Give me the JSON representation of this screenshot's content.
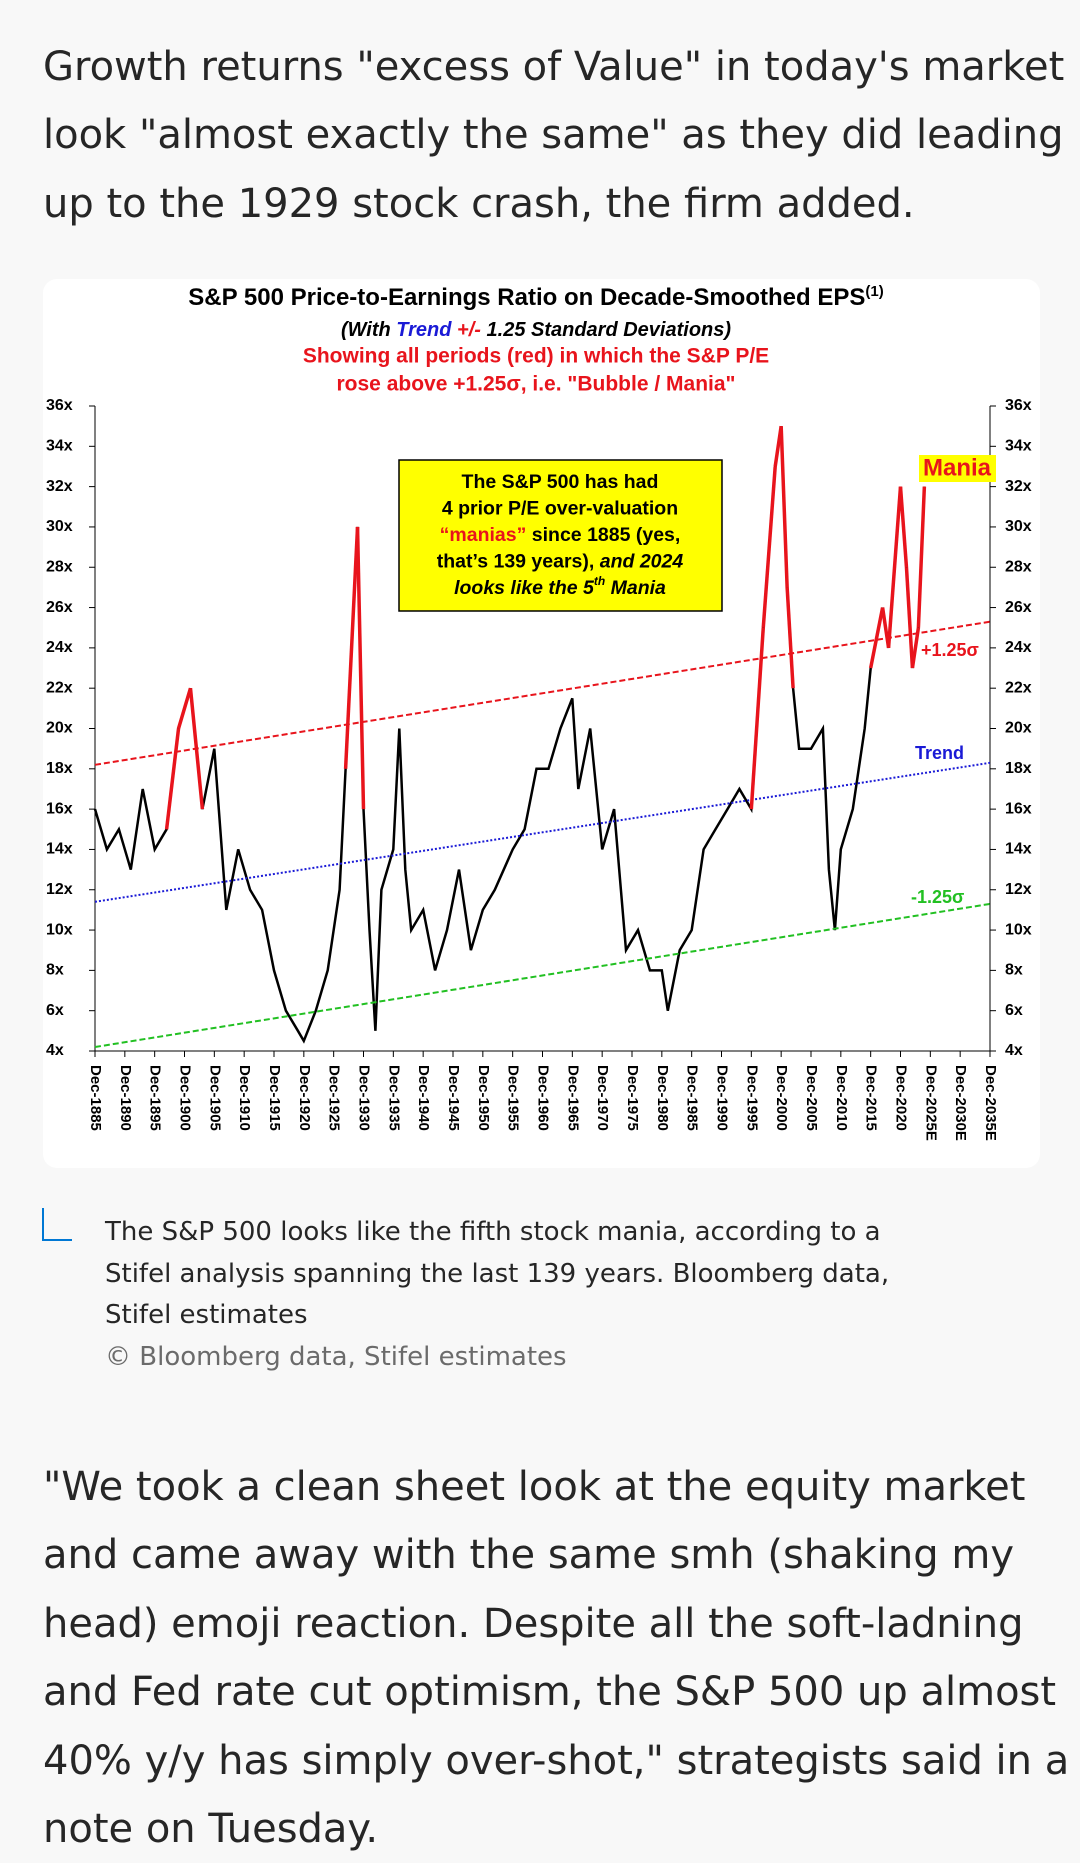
{
  "article": {
    "paragraphs": [
      {
        "lines": [
          "Growth returns \"excess of Value\" in today's market",
          "look \"almost exactly the same\" as they did leading",
          "up to the 1929 stock crash, the firm added."
        ]
      },
      {
        "lines": [
          "\"We took a clean sheet look at the equity market",
          "and came away with the same smh (shaking my",
          "head) emoji reaction. Despite all the soft-ladning",
          "and Fed rate cut optimism, the S&P 500 up almost",
          "40% y/y has simply over-shot,\" strategists said in a",
          "note on Tuesday."
        ]
      }
    ]
  },
  "figure": {
    "caption_lines": [
      "The S&P 500 looks like the fifth stock mania, according to a",
      "Stifel analysis spanning the last 139 years. Bloomberg data,",
      "Stifel estimates"
    ],
    "credit": "© Bloomberg data, Stifel estimates"
  },
  "chart_data": {
    "type": "line",
    "title": "S&P 500 Price-to-Earnings Ratio on Decade-Smoothed EPS",
    "title_note": "(1)",
    "subtitle": [
      "(With ",
      "Trend",
      " +/- ",
      "1.25 Standard Deviations)"
    ],
    "subtitle_colors": [
      "#000000",
      "#1a1ad6",
      "#e8141c",
      "#000000"
    ],
    "highlight_lines": [
      "Showing all periods (red) in which the S&P P/E",
      "rose above +1.25σ, i.e. \"Bubble / Mania\""
    ],
    "highlight_color": "#e8141c",
    "annotation_box": [
      [
        {
          "text": "The S&P 500 has had"
        }
      ],
      [
        {
          "text": "4 prior P/E over-valuation"
        }
      ],
      [
        {
          "text": "“manias”",
          "color": "#e8141c"
        },
        {
          "text": " since 1885 (yes,"
        }
      ],
      [
        {
          "text": "that’s 139 years), "
        },
        {
          "text": "and 2024",
          "italic": true
        }
      ],
      [
        {
          "text": "looks like the 5",
          "italic": true
        },
        {
          "text": "th",
          "italic": true,
          "sup": true
        },
        {
          "text": " Mania",
          "italic": true
        }
      ]
    ],
    "mania_label": "Mania",
    "xlim": [
      1885,
      2035
    ],
    "xticks": [
      {
        "value": 1885,
        "label": "Dec-1885"
      },
      {
        "value": 1890,
        "label": "Dec-1890"
      },
      {
        "value": 1895,
        "label": "Dec-1895"
      },
      {
        "value": 1900,
        "label": "Dec-1900"
      },
      {
        "value": 1905,
        "label": "Dec-1905"
      },
      {
        "value": 1910,
        "label": "Dec-1910"
      },
      {
        "value": 1915,
        "label": "Dec-1915"
      },
      {
        "value": 1920,
        "label": "Dec-1920"
      },
      {
        "value": 1925,
        "label": "Dec-1925"
      },
      {
        "value": 1930,
        "label": "Dec-1930"
      },
      {
        "value": 1935,
        "label": "Dec-1935"
      },
      {
        "value": 1940,
        "label": "Dec-1940"
      },
      {
        "value": 1945,
        "label": "Dec-1945"
      },
      {
        "value": 1950,
        "label": "Dec-1950"
      },
      {
        "value": 1955,
        "label": "Dec-1955"
      },
      {
        "value": 1960,
        "label": "Dec-1960"
      },
      {
        "value": 1965,
        "label": "Dec-1965"
      },
      {
        "value": 1970,
        "label": "Dec-1970"
      },
      {
        "value": 1975,
        "label": "Dec-1975"
      },
      {
        "value": 1980,
        "label": "Dec-1980"
      },
      {
        "value": 1985,
        "label": "Dec-1985"
      },
      {
        "value": 1990,
        "label": "Dec-1990"
      },
      {
        "value": 1995,
        "label": "Dec-1995"
      },
      {
        "value": 2000,
        "label": "Dec-2000"
      },
      {
        "value": 2005,
        "label": "Dec-2005"
      },
      {
        "value": 2010,
        "label": "Dec-2010"
      },
      {
        "value": 2015,
        "label": "Dec-2015"
      },
      {
        "value": 2020,
        "label": "Dec-2020"
      },
      {
        "value": 2025,
        "label": "Dec-2025E"
      },
      {
        "value": 2030,
        "label": "Dec-2030E"
      },
      {
        "value": 2035,
        "label": "Dec-2035E"
      }
    ],
    "ylim": [
      4,
      36
    ],
    "yticks": [
      {
        "value": 4,
        "label": "4x"
      },
      {
        "value": 6,
        "label": "6x"
      },
      {
        "value": 8,
        "label": "8x"
      },
      {
        "value": 10,
        "label": "10x"
      },
      {
        "value": 12,
        "label": "12x"
      },
      {
        "value": 14,
        "label": "14x"
      },
      {
        "value": 16,
        "label": "16x"
      },
      {
        "value": 18,
        "label": "18x"
      },
      {
        "value": 20,
        "label": "20x"
      },
      {
        "value": 22,
        "label": "22x"
      },
      {
        "value": 24,
        "label": "24x"
      },
      {
        "value": 26,
        "label": "26x"
      },
      {
        "value": 28,
        "label": "28x"
      },
      {
        "value": 30,
        "label": "30x"
      },
      {
        "value": 32,
        "label": "32x"
      },
      {
        "value": 34,
        "label": "34x"
      },
      {
        "value": 36,
        "label": "36x"
      }
    ],
    "mirror_y_axis": true,
    "series": [
      {
        "color": "#000000",
        "highlight_color": "#e8141c",
        "x": [
          1885,
          1887,
          1889,
          1891,
          1893,
          1895,
          1897,
          1899,
          1901,
          1903,
          1905,
          1907,
          1909,
          1911,
          1913,
          1915,
          1917,
          1919,
          1920,
          1922,
          1924,
          1926,
          1927,
          1929,
          1930,
          1931,
          1932,
          1933,
          1935,
          1936,
          1937,
          1938,
          1940,
          1942,
          1944,
          1946,
          1948,
          1950,
          1952,
          1955,
          1957,
          1959,
          1961,
          1963,
          1965,
          1966,
          1968,
          1970,
          1972,
          1974,
          1976,
          1978,
          1980,
          1981,
          1983,
          1985,
          1987,
          1989,
          1991,
          1993,
          1995,
          1997,
          1999,
          2000,
          2001,
          2002,
          2003,
          2005,
          2007,
          2008,
          2009,
          2010,
          2012,
          2014,
          2015,
          2017,
          2018,
          2020,
          2021,
          2022,
          2023,
          2024
        ],
        "values": [
          16,
          14,
          15,
          13,
          17,
          14,
          15,
          20,
          22,
          16,
          19,
          11,
          14,
          12,
          11,
          8,
          6,
          5,
          4.5,
          6,
          8,
          12,
          18,
          30,
          16,
          10,
          5,
          12,
          14,
          20,
          13,
          10,
          11,
          8,
          10,
          13,
          9,
          11,
          12,
          14,
          15,
          18,
          18,
          20,
          21.5,
          17,
          20,
          14,
          16,
          9,
          10,
          8,
          8,
          6,
          9,
          10,
          14,
          15,
          16,
          17,
          16,
          25,
          33,
          35,
          27,
          22,
          19,
          19,
          20,
          13,
          10,
          14,
          16,
          20,
          23,
          26,
          24,
          32,
          28,
          23,
          25,
          32
        ]
      },
      {
        "name": "+1.25σ",
        "color": "#e8141c",
        "dash": "dashed",
        "x": [
          1885,
          2035
        ],
        "values": [
          18.2,
          25.3
        ]
      },
      {
        "name": "Trend",
        "color": "#1a1ad6",
        "dash": "dotted",
        "x": [
          1885,
          2035
        ],
        "values": [
          11.4,
          18.3
        ]
      },
      {
        "name": "-1.25σ",
        "color": "#22c022",
        "dash": "dashed",
        "x": [
          1885,
          2035
        ],
        "values": [
          4.2,
          11.3
        ]
      }
    ]
  }
}
